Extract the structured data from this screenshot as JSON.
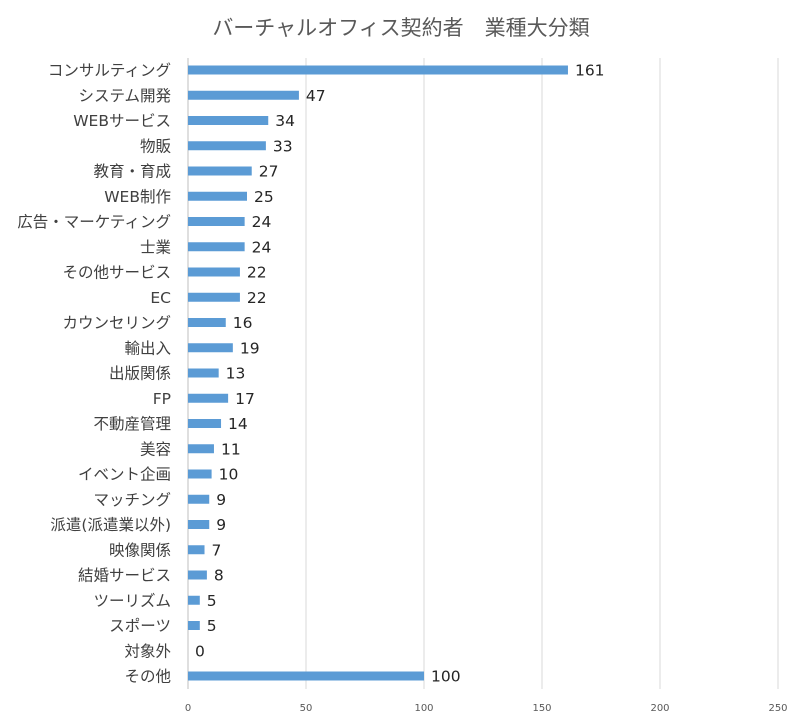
{
  "chart_data": {
    "type": "bar",
    "orientation": "horizontal",
    "title": "バーチャルオフィス契約者　業種大分類",
    "xlabel": "",
    "ylabel": "",
    "xlim": [
      0,
      250
    ],
    "xticks": [
      0,
      50,
      100,
      150,
      200,
      250
    ],
    "grid": true,
    "bar_color": "#5b9bd5",
    "categories": [
      "コンサルティング",
      "システム開発",
      "WEBサービス",
      "物販",
      "教育・育成",
      "WEB制作",
      "広告・マーケティング",
      "士業",
      "その他サービス",
      "EC",
      "カウンセリング",
      "輸出入",
      "出版関係",
      "FP",
      "不動産管理",
      "美容",
      "イベント企画",
      "マッチング",
      "派遣(派遣業以外)",
      "映像関係",
      "結婚サービス",
      "ツーリズム",
      "スポーツ",
      "対象外",
      "その他"
    ],
    "values": [
      161,
      47,
      34,
      33,
      27,
      25,
      24,
      24,
      22,
      22,
      16,
      19,
      13,
      17,
      14,
      11,
      10,
      9,
      9,
      7,
      8,
      5,
      5,
      0,
      100
    ]
  }
}
